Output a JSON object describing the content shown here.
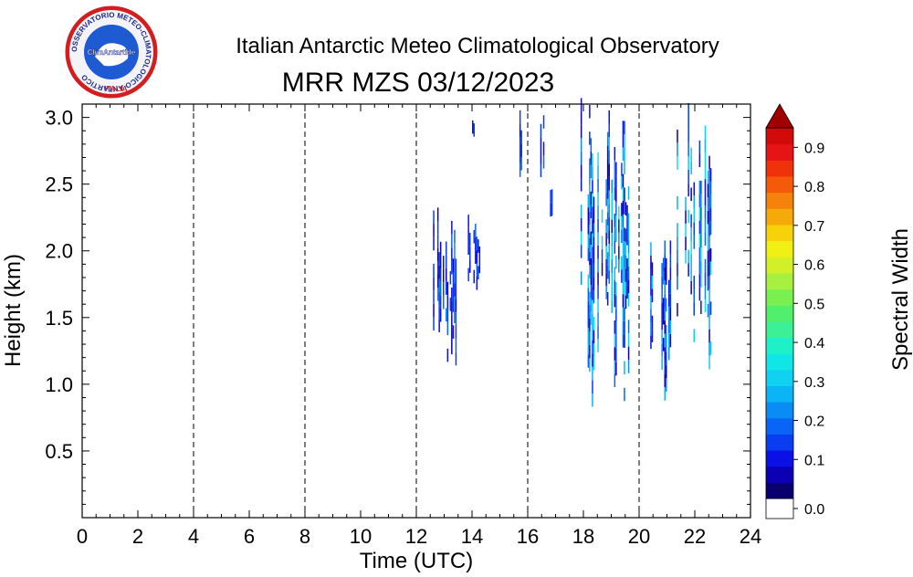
{
  "header": {
    "title": "Italian Antarctic Meteo Climatological Observatory",
    "subtitle": "MRR MZS 03/12/2023"
  },
  "logo": {
    "ring_text": "OSSERVATORIO METEO-CLIMATOLOGICO ANTARTICO",
    "badge_text": "ClimAntartide",
    "country_text": "ITALIA"
  },
  "colorbar": {
    "label": "Spectral Width",
    "tick_labels": [
      "0.0",
      "0.1",
      "0.2",
      "0.3",
      "0.4",
      "0.5",
      "0.6",
      "0.7",
      "0.8",
      "0.9"
    ],
    "colors": [
      "#08006e",
      "#0c00b4",
      "#0a10e6",
      "#0a3cf0",
      "#0a64f5",
      "#0a8cf5",
      "#0ab4f5",
      "#10d2f0",
      "#10e6e6",
      "#1ef0c8",
      "#3cf096",
      "#50f06e",
      "#7af050",
      "#a8f040",
      "#d2f028",
      "#f0f014",
      "#f5d20a",
      "#f5aa0a",
      "#f5820a",
      "#f55a0a",
      "#f0320a",
      "#e61414",
      "#d20a0a"
    ]
  },
  "chart_data": {
    "type": "heatmap",
    "title": "MRR MZS 03/12/2023",
    "xlabel": "Time (UTC)",
    "ylabel": "Height (km)",
    "xlim": [
      0,
      24
    ],
    "ylim": [
      0,
      3.1
    ],
    "x_ticks": [
      "0",
      "2",
      "4",
      "6",
      "8",
      "10",
      "12",
      "14",
      "16",
      "18",
      "20",
      "22",
      "24"
    ],
    "y_ticks": [
      "0.5",
      "1.0",
      "1.5",
      "2.0",
      "2.5",
      "3.0"
    ],
    "y_tick_values": [
      0.5,
      1.0,
      1.5,
      2.0,
      2.5,
      3.0
    ],
    "dashed_vlines": [
      4,
      8,
      12,
      16,
      20
    ],
    "colorbar_range": [
      0.0,
      0.95
    ],
    "echoes": [
      {
        "t": [
          12.6,
          13.5
        ],
        "z": [
          1.1,
          2.3
        ],
        "width": [
          0.05,
          0.22
        ]
      },
      {
        "t": [
          13.8,
          14.3
        ],
        "z": [
          1.7,
          2.2
        ],
        "width": [
          0.08,
          0.2
        ]
      },
      {
        "t": [
          14.0,
          14.1
        ],
        "z": [
          2.85,
          2.95
        ],
        "width": [
          0.1,
          0.15
        ]
      },
      {
        "t": [
          15.6,
          15.9
        ],
        "z": [
          2.4,
          3.0
        ],
        "width": [
          0.1,
          0.2
        ]
      },
      {
        "t": [
          16.4,
          16.6
        ],
        "z": [
          2.45,
          3.1
        ],
        "width": [
          0.1,
          0.2
        ]
      },
      {
        "t": [
          16.8,
          16.9
        ],
        "z": [
          2.25,
          2.4
        ],
        "width": [
          0.1,
          0.15
        ]
      },
      {
        "t": [
          17.9,
          19.7
        ],
        "z": [
          0.8,
          3.1
        ],
        "width": [
          0.05,
          0.35
        ]
      },
      {
        "t": [
          20.4,
          21.2
        ],
        "z": [
          0.8,
          2.1
        ],
        "width": [
          0.05,
          0.3
        ]
      },
      {
        "t": [
          21.3,
          22.6
        ],
        "z": [
          1.0,
          3.1
        ],
        "width": [
          0.05,
          0.35
        ]
      }
    ]
  }
}
